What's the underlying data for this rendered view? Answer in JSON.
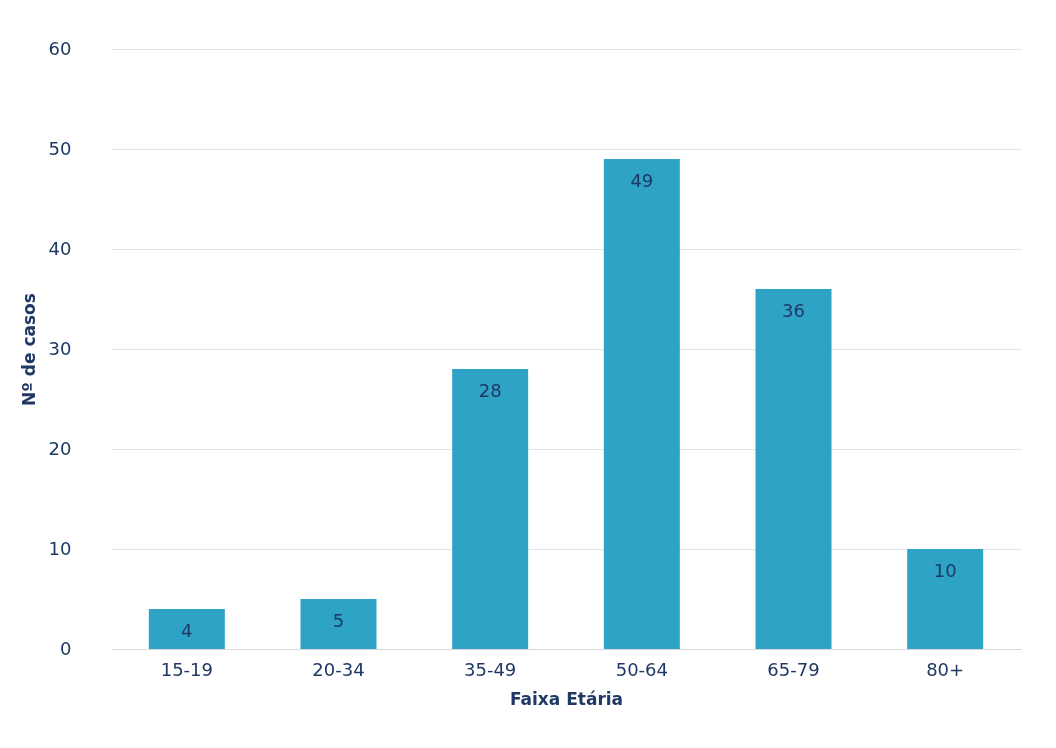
{
  "chart_data": {
    "type": "bar",
    "xlabel": "Faixa Etária",
    "ylabel": "Nº de  casos",
    "categories": [
      "15-19",
      "20-34",
      "35-49",
      "50-64",
      "65-79",
      "80+"
    ],
    "values": [
      4,
      5,
      28,
      49,
      36,
      10
    ],
    "color": "#2ea3c6",
    "ylim": [
      0,
      60
    ],
    "yticks": [
      0,
      10,
      20,
      30,
      40,
      50,
      60
    ],
    "grid": "y",
    "data_labels": true
  }
}
